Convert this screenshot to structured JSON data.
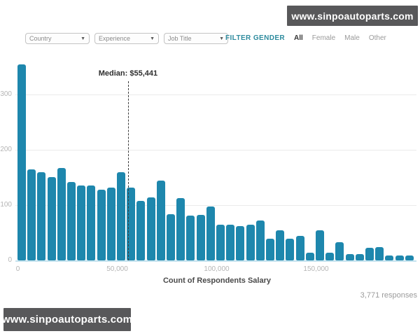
{
  "watermarks": {
    "top_right": "www.sinpoautoparts.com",
    "bottom_left": "www.sinpoautoparts.com"
  },
  "toolbar": {
    "dropdowns": [
      {
        "label": "Country"
      },
      {
        "label": "Experience"
      },
      {
        "label": "Job Title"
      }
    ],
    "gender_filter": {
      "label": "FILTER GENDER",
      "options": [
        "All",
        "Female",
        "Male",
        "Other"
      ],
      "selected": "All"
    }
  },
  "chart_data": {
    "type": "bar",
    "subtype": "histogram",
    "title": "",
    "xlabel": "Count of Respondents Salary",
    "ylabel": "",
    "bin_width": 5000,
    "x_start": 0,
    "xlim": [
      0,
      200000
    ],
    "ylim": [
      0,
      365
    ],
    "grid": true,
    "legend": "none",
    "bar_color": "#1e87ad",
    "values": [
      355,
      164,
      159,
      151,
      167,
      142,
      136,
      136,
      128,
      132,
      160,
      132,
      108,
      114,
      144,
      84,
      113,
      81,
      82,
      98,
      65,
      64,
      62,
      64,
      72,
      39,
      54,
      39,
      44,
      14,
      54,
      14,
      33,
      12,
      12,
      23,
      24,
      9,
      9,
      9
    ],
    "yticks": [
      0,
      100,
      200,
      300
    ],
    "xticks": [
      {
        "value": 0,
        "label": "0"
      },
      {
        "value": 50000,
        "label": "50,000"
      },
      {
        "value": 100000,
        "label": "100,000"
      },
      {
        "value": 150000,
        "label": "150,000"
      }
    ],
    "median": {
      "value": 55441,
      "label": "Median: $55,441"
    }
  },
  "footer": {
    "responses": "3,771 responses"
  }
}
